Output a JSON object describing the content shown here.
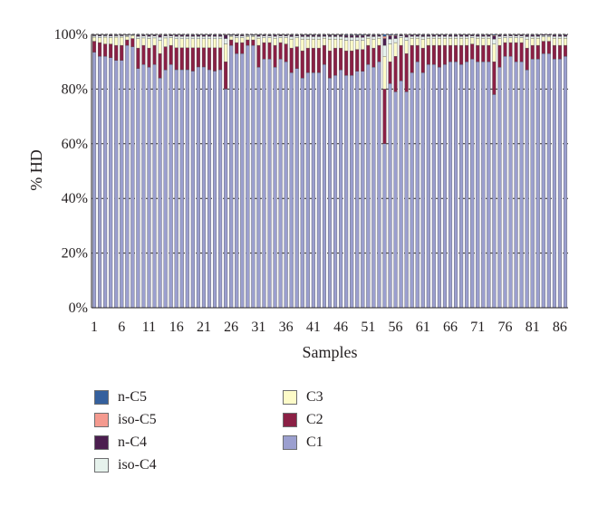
{
  "chart_data": {
    "type": "bar",
    "stacked": "percent",
    "title": "",
    "xlabel": "Samples",
    "ylabel": "% HD",
    "ylim": [
      0,
      100
    ],
    "yticks": [
      "0%",
      "20%",
      "40%",
      "60%",
      "80%",
      "100%"
    ],
    "xtick_labels": [
      "1",
      "6",
      "11",
      "16",
      "21",
      "26",
      "31",
      "36",
      "41",
      "46",
      "51",
      "56",
      "61",
      "66",
      "71",
      "76",
      "81",
      "86"
    ],
    "categories": [
      "1",
      "2",
      "3",
      "4",
      "5",
      "6",
      "7",
      "8",
      "9",
      "10",
      "11",
      "12",
      "13",
      "14",
      "15",
      "16",
      "17",
      "18",
      "19",
      "20",
      "21",
      "22",
      "23",
      "24",
      "25",
      "26",
      "27",
      "28",
      "29",
      "30",
      "31",
      "32",
      "33",
      "34",
      "35",
      "36",
      "37",
      "38",
      "39",
      "40",
      "41",
      "42",
      "43",
      "44",
      "45",
      "46",
      "47",
      "48",
      "49",
      "50",
      "51",
      "52",
      "53",
      "54",
      "55",
      "56",
      "57",
      "58",
      "59",
      "60",
      "61",
      "62",
      "63",
      "64",
      "65",
      "66",
      "67",
      "68",
      "69",
      "70",
      "71",
      "72",
      "73",
      "74",
      "75",
      "76",
      "77",
      "78",
      "79",
      "80",
      "81",
      "82",
      "83",
      "84",
      "85",
      "86",
      "87"
    ],
    "grid": true,
    "legend_position": "bottom",
    "series": [
      {
        "name": "C1",
        "color": "#9b9fcf",
        "values": [
          93.5,
          92,
          92,
          91.5,
          90.5,
          90.5,
          96,
          95.5,
          87.5,
          89,
          88,
          89,
          84,
          87,
          89,
          87,
          87,
          87,
          86.5,
          88,
          88,
          87,
          86.5,
          87,
          80,
          96,
          93,
          93,
          96,
          96,
          88,
          91,
          91,
          88,
          91,
          90,
          86,
          87.5,
          84,
          86,
          86,
          86,
          89,
          84,
          85,
          87,
          85,
          85,
          86.5,
          86.5,
          89,
          88,
          90,
          60,
          82,
          79,
          83,
          79,
          86,
          90,
          86,
          89,
          89,
          88,
          89,
          90,
          90,
          89,
          90,
          91,
          90,
          90,
          90,
          78,
          88,
          92,
          92,
          90,
          90,
          87,
          91,
          91,
          93,
          93,
          91,
          91,
          92
        ]
      },
      {
        "name": "C2",
        "color": "#8b2045",
        "values": [
          4,
          5,
          4.5,
          5,
          5.5,
          5.5,
          2,
          3,
          7.5,
          7,
          7,
          7,
          9,
          8.5,
          7,
          8,
          8,
          8,
          8.5,
          7,
          7,
          8,
          8.5,
          8,
          10,
          2,
          4,
          4,
          2,
          2,
          8,
          6,
          6,
          8,
          6,
          6.5,
          9,
          8,
          10,
          9,
          9,
          9,
          7,
          10,
          10,
          8,
          9,
          9,
          8,
          8,
          7,
          7,
          6,
          20,
          8,
          13,
          13,
          14,
          10,
          6,
          9,
          7,
          7,
          8,
          7,
          6,
          6,
          7,
          6,
          5.5,
          6,
          6,
          6,
          12,
          8,
          5,
          5,
          7,
          7,
          8,
          5,
          5,
          4.5,
          4.5,
          5,
          5,
          4
        ]
      },
      {
        "name": "C3",
        "color": "#fdfbc8",
        "values": [
          1.5,
          1.8,
          2.5,
          2.3,
          3,
          3,
          1.2,
          1.1,
          3.5,
          2.7,
          3.5,
          2.7,
          4.8,
          3.2,
          2.8,
          3.3,
          3.3,
          3.3,
          3.3,
          3.3,
          3.3,
          3.3,
          3.3,
          3.3,
          6.5,
          1.3,
          1.8,
          1.8,
          1.2,
          1.2,
          2.6,
          1.8,
          1.8,
          2.6,
          1.8,
          2.3,
          3.3,
          3.3,
          4.3,
          3.3,
          3.3,
          3.3,
          2.6,
          4.3,
          3.3,
          3.3,
          3.8,
          3.8,
          3.3,
          3.3,
          2.6,
          3.3,
          2.6,
          12,
          6.5,
          5,
          2.8,
          4.8,
          2.6,
          2.6,
          3.3,
          2.6,
          2.6,
          2.6,
          2.6,
          2.6,
          2.6,
          2.6,
          2.6,
          2.3,
          2.6,
          2.6,
          2.6,
          6.5,
          2.6,
          1.8,
          1.8,
          1.8,
          1.8,
          3.3,
          2.6,
          2.6,
          1.6,
          1.6,
          2.6,
          2.6,
          2.6
        ]
      },
      {
        "name": "iso-C4",
        "color": "#e6f2ec",
        "values": [
          0.5,
          0.6,
          0.5,
          0.6,
          0.5,
          0.5,
          0.4,
          0.2,
          0.8,
          0.7,
          0.8,
          0.7,
          1.2,
          0.7,
          0.6,
          0.9,
          0.9,
          0.9,
          0.9,
          0.9,
          0.9,
          0.9,
          0.9,
          0.9,
          2,
          0.3,
          0.6,
          0.6,
          0.4,
          0.4,
          0.7,
          0.6,
          0.6,
          0.7,
          0.6,
          0.6,
          0.9,
          0.6,
          0.9,
          0.9,
          0.9,
          0.9,
          0.7,
          0.9,
          0.9,
          0.9,
          1.1,
          1.1,
          1.1,
          1.1,
          0.7,
          0.9,
          0.7,
          4,
          1.8,
          1.5,
          0.6,
          1.2,
          0.7,
          0.7,
          0.9,
          0.7,
          0.7,
          0.7,
          0.7,
          0.7,
          0.7,
          0.7,
          0.7,
          0.6,
          0.7,
          0.7,
          0.7,
          1.8,
          0.7,
          0.6,
          0.6,
          0.6,
          0.6,
          0.9,
          0.7,
          0.7,
          0.5,
          0.5,
          0.7,
          0.7,
          0.7
        ]
      },
      {
        "name": "n-C4",
        "color": "#4b1e4f",
        "values": [
          0.3,
          0.4,
          0.3,
          0.4,
          0.3,
          0.3,
          0.2,
          0.1,
          0.5,
          0.4,
          0.5,
          0.4,
          0.7,
          0.4,
          0.4,
          0.5,
          0.5,
          0.5,
          0.5,
          0.5,
          0.5,
          0.5,
          0.5,
          0.5,
          1.2,
          0.2,
          0.4,
          0.4,
          0.2,
          0.2,
          0.5,
          0.4,
          0.4,
          0.5,
          0.4,
          0.4,
          0.5,
          0.4,
          0.5,
          0.5,
          0.5,
          0.5,
          0.5,
          0.5,
          0.5,
          0.5,
          0.7,
          0.7,
          0.7,
          0.7,
          0.5,
          0.5,
          0.5,
          2.5,
          1.1,
          1,
          0.4,
          0.7,
          0.5,
          0.5,
          0.5,
          0.5,
          0.5,
          0.5,
          0.5,
          0.5,
          0.5,
          0.5,
          0.5,
          0.4,
          0.5,
          0.5,
          0.5,
          1.1,
          0.5,
          0.4,
          0.4,
          0.4,
          0.4,
          0.5,
          0.5,
          0.5,
          0.3,
          0.3,
          0.5,
          0.5,
          0.5
        ]
      },
      {
        "name": "iso-C5",
        "color": "#f49a8f",
        "values": [
          0.1,
          0.1,
          0.1,
          0.1,
          0.1,
          0.1,
          0.1,
          0.05,
          0.1,
          0.1,
          0.1,
          0.1,
          0.2,
          0.1,
          0.1,
          0.1,
          0.1,
          0.1,
          0.1,
          0.1,
          0.1,
          0.1,
          0.1,
          0.1,
          0.2,
          0.1,
          0.1,
          0.1,
          0.1,
          0.1,
          0.1,
          0.1,
          0.1,
          0.1,
          0.1,
          0.1,
          0.15,
          0.1,
          0.15,
          0.15,
          0.15,
          0.15,
          0.1,
          0.15,
          0.15,
          0.15,
          0.2,
          0.2,
          0.2,
          0.2,
          0.1,
          0.15,
          0.1,
          0.8,
          0.3,
          0.3,
          0.1,
          0.2,
          0.1,
          0.1,
          0.15,
          0.1,
          0.1,
          0.1,
          0.1,
          0.1,
          0.1,
          0.1,
          0.1,
          0.1,
          0.1,
          0.1,
          0.1,
          0.3,
          0.1,
          0.1,
          0.1,
          0.1,
          0.1,
          0.15,
          0.1,
          0.1,
          0.05,
          0.05,
          0.1,
          0.1,
          0.1
        ]
      },
      {
        "name": "n-C5",
        "color": "#35609d",
        "values": [
          0.1,
          0.1,
          0.1,
          0.1,
          0.1,
          0.1,
          0.1,
          0.05,
          0.1,
          0.1,
          0.1,
          0.1,
          0.1,
          0.1,
          0.1,
          0.1,
          0.1,
          0.1,
          0.1,
          0.1,
          0.1,
          0.1,
          0.1,
          0.1,
          0.1,
          0.1,
          0.1,
          0.1,
          0.1,
          0.1,
          0.1,
          0.1,
          0.1,
          0.1,
          0.1,
          0.1,
          0.15,
          0.1,
          0.15,
          0.15,
          0.15,
          0.15,
          0.1,
          0.15,
          0.15,
          0.15,
          0.2,
          0.2,
          0.2,
          0.2,
          0.1,
          0.15,
          0.1,
          0.7,
          0.3,
          0.2,
          0.1,
          0.1,
          0.1,
          0.1,
          0.15,
          0.1,
          0.1,
          0.1,
          0.1,
          0.1,
          0.1,
          0.1,
          0.1,
          0.1,
          0.1,
          0.1,
          0.1,
          0.3,
          0.1,
          0.1,
          0.1,
          0.1,
          0.1,
          0.15,
          0.1,
          0.1,
          0.05,
          0.05,
          0.1,
          0.1,
          0.1
        ]
      }
    ],
    "legend": [
      {
        "name": "n-C5",
        "color": "#35609d"
      },
      {
        "name": "iso-C5",
        "color": "#f49a8f"
      },
      {
        "name": "n-C4",
        "color": "#4b1e4f"
      },
      {
        "name": "iso-C4",
        "color": "#e6f2ec"
      },
      {
        "name": "C3",
        "color": "#fdfbc8"
      },
      {
        "name": "C2",
        "color": "#8b2045"
      },
      {
        "name": "C1",
        "color": "#9b9fcf"
      }
    ]
  }
}
